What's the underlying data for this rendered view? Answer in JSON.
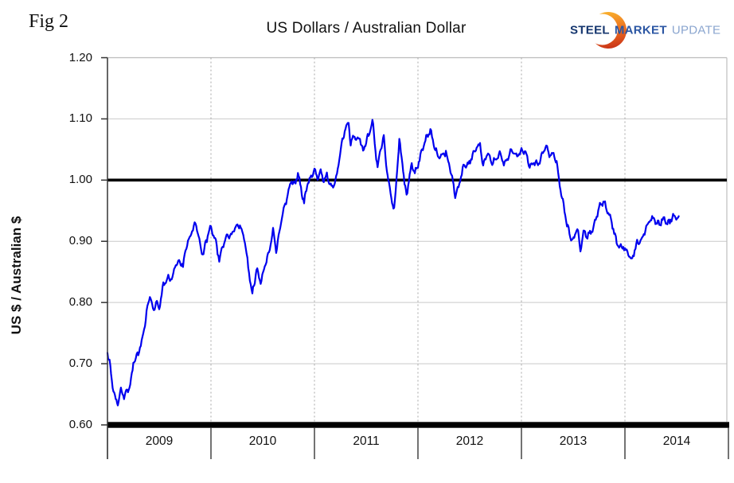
{
  "fig_label": "Fig 2",
  "logo": {
    "steel": "STEEL",
    "market": "MARKET",
    "update": "UPDATE",
    "steel_color": "#14356E",
    "market_color": "#2B56A3",
    "update_color": "#8AA5CF",
    "crescent_top_color": "#F9B02C",
    "crescent_bottom_color": "#C93418"
  },
  "chart_data": {
    "type": "line",
    "title": "US Dollars  / Australian Dollar",
    "ylabel": "US $ / Australian $",
    "ylim": [
      0.6,
      1.2
    ],
    "y_ticks": [
      "0.60",
      "0.70",
      "0.80",
      "0.90",
      "1.00",
      "1.10",
      "1.20"
    ],
    "x_categories": [
      "2009",
      "2010",
      "2011",
      "2012",
      "2013",
      "2014"
    ],
    "x_range": [
      2009,
      2015
    ],
    "grid": {
      "horizontal": "solid-gray",
      "vertical": "dashed-gray"
    },
    "legend": "none",
    "line_color": "#0000EE",
    "parity_reference_line": 1.0,
    "bottom_axis_bar_value": 0.6,
    "noise": 0.0065,
    "series": [
      {
        "name": "US $ per Australian $",
        "x": [
          2009.0,
          2009.02,
          2009.05,
          2009.08,
          2009.1,
          2009.13,
          2009.16,
          2009.19,
          2009.22,
          2009.25,
          2009.29,
          2009.33,
          2009.37,
          2009.41,
          2009.44,
          2009.47,
          2009.5,
          2009.54,
          2009.58,
          2009.62,
          2009.66,
          2009.7,
          2009.73,
          2009.77,
          2009.81,
          2009.85,
          2009.88,
          2009.92,
          2009.96,
          2010.0,
          2010.04,
          2010.08,
          2010.12,
          2010.16,
          2010.2,
          2010.24,
          2010.28,
          2010.32,
          2010.36,
          2010.4,
          2010.44,
          2010.48,
          2010.52,
          2010.56,
          2010.6,
          2010.63,
          2010.67,
          2010.71,
          2010.75,
          2010.78,
          2010.81,
          2010.84,
          2010.87,
          2010.9,
          2010.93,
          2010.96,
          2011.0,
          2011.03,
          2011.06,
          2011.09,
          2011.12,
          2011.15,
          2011.18,
          2011.21,
          2011.24,
          2011.27,
          2011.3,
          2011.33,
          2011.35,
          2011.38,
          2011.41,
          2011.44,
          2011.47,
          2011.5,
          2011.53,
          2011.56,
          2011.59,
          2011.61,
          2011.64,
          2011.67,
          2011.7,
          2011.72,
          2011.75,
          2011.77,
          2011.8,
          2011.82,
          2011.85,
          2011.87,
          2011.89,
          2011.92,
          2011.94,
          2011.97,
          2012.0,
          2012.04,
          2012.08,
          2012.12,
          2012.16,
          2012.2,
          2012.24,
          2012.27,
          2012.3,
          2012.33,
          2012.36,
          2012.4,
          2012.44,
          2012.48,
          2012.52,
          2012.56,
          2012.6,
          2012.63,
          2012.67,
          2012.71,
          2012.75,
          2012.79,
          2012.83,
          2012.87,
          2012.91,
          2012.95,
          2013.0,
          2013.04,
          2013.08,
          2013.12,
          2013.16,
          2013.2,
          2013.24,
          2013.27,
          2013.31,
          2013.34,
          2013.37,
          2013.4,
          2013.44,
          2013.48,
          2013.51,
          2013.54,
          2013.57,
          2013.6,
          2013.63,
          2013.67,
          2013.71,
          2013.75,
          2013.8,
          2013.84,
          2013.88,
          2013.92,
          2013.96,
          2014.0,
          2014.04,
          2014.07,
          2014.11,
          2014.15,
          2014.19,
          2014.23,
          2014.28,
          2014.31,
          2014.34,
          2014.38,
          2014.41,
          2014.45,
          2014.48,
          2014.52
        ],
        "values": [
          0.72,
          0.7,
          0.662,
          0.643,
          0.637,
          0.658,
          0.644,
          0.655,
          0.67,
          0.7,
          0.712,
          0.736,
          0.772,
          0.813,
          0.79,
          0.802,
          0.787,
          0.828,
          0.843,
          0.834,
          0.861,
          0.871,
          0.857,
          0.897,
          0.919,
          0.928,
          0.907,
          0.881,
          0.902,
          0.921,
          0.907,
          0.869,
          0.892,
          0.915,
          0.907,
          0.924,
          0.93,
          0.904,
          0.858,
          0.817,
          0.851,
          0.834,
          0.861,
          0.879,
          0.917,
          0.889,
          0.92,
          0.956,
          0.984,
          1.0,
          0.988,
          1.011,
          0.99,
          0.963,
          0.989,
          1.004,
          1.022,
          0.998,
          1.012,
          1.002,
          1.012,
          0.99,
          0.985,
          1.005,
          1.035,
          1.062,
          1.082,
          1.098,
          1.062,
          1.07,
          1.064,
          1.073,
          1.048,
          1.062,
          1.072,
          1.103,
          1.048,
          1.022,
          1.048,
          1.071,
          1.018,
          0.993,
          0.962,
          0.949,
          1.02,
          1.066,
          1.03,
          0.99,
          0.976,
          1.01,
          1.03,
          1.008,
          1.022,
          1.052,
          1.068,
          1.079,
          1.058,
          1.035,
          1.04,
          1.048,
          1.028,
          1.002,
          0.972,
          0.997,
          1.02,
          1.023,
          1.04,
          1.05,
          1.057,
          1.024,
          1.044,
          1.026,
          1.038,
          1.041,
          1.025,
          1.04,
          1.049,
          1.038,
          1.051,
          1.042,
          1.023,
          1.033,
          1.021,
          1.044,
          1.057,
          1.036,
          1.044,
          1.033,
          0.99,
          0.962,
          0.928,
          0.908,
          0.901,
          0.921,
          0.89,
          0.918,
          0.903,
          0.916,
          0.933,
          0.951,
          0.967,
          0.946,
          0.923,
          0.9,
          0.892,
          0.886,
          0.878,
          0.872,
          0.892,
          0.903,
          0.917,
          0.929,
          0.941,
          0.93,
          0.926,
          0.937,
          0.929,
          0.935,
          0.942,
          0.941
        ]
      }
    ]
  }
}
